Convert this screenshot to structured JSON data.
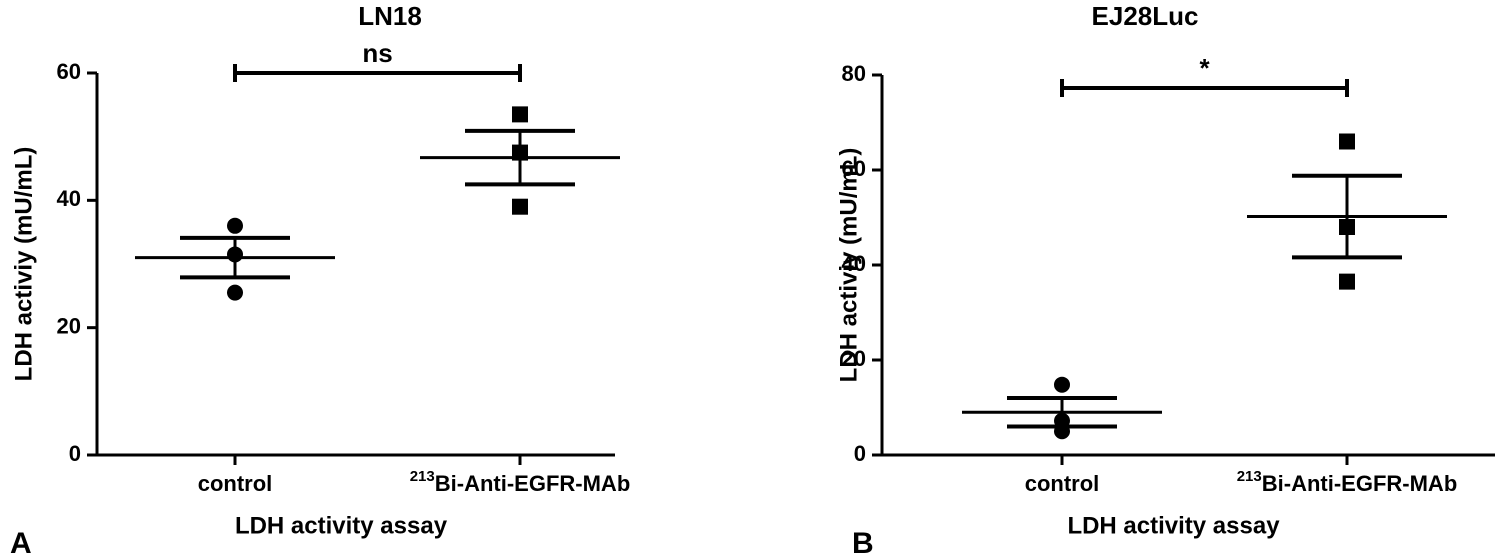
{
  "chart_data": [
    {
      "type": "dot",
      "panel_label": "A",
      "title": "LN18",
      "y_label": "LDH activiy (mU/mL)",
      "x_label": "LDH activity assay",
      "categories": [
        "control",
        "213Bi-Anti-EGFR-MAb"
      ],
      "markers": [
        "circle",
        "square"
      ],
      "color": "#000000",
      "groups": [
        {
          "points": [
            36,
            31.5,
            25.5
          ],
          "mean": 31,
          "sem": 3.1
        },
        {
          "points": [
            53.5,
            47.5,
            39
          ],
          "mean": 46.7,
          "sem": 4.2
        }
      ],
      "annotation": "ns",
      "ylim": [
        0,
        60
      ],
      "yticks": [
        0,
        20,
        40,
        60
      ]
    },
    {
      "type": "dot",
      "panel_label": "B",
      "title": "EJ28Luc",
      "y_label": "LDH activiy (mU/mL)",
      "x_label": "LDH activity assay",
      "categories": [
        "control",
        "213Bi-Anti-EGFR-MAb"
      ],
      "markers": [
        "circle",
        "square"
      ],
      "color": "#000000",
      "groups": [
        {
          "points": [
            14.8,
            7.2,
            5
          ],
          "mean": 9,
          "sem": 3
        },
        {
          "points": [
            66,
            48,
            36.5
          ],
          "mean": 50.2,
          "sem": 8.6
        }
      ],
      "annotation": "*",
      "ylim": [
        0,
        80
      ],
      "yticks": [
        0,
        20,
        40,
        60,
        80
      ]
    }
  ]
}
